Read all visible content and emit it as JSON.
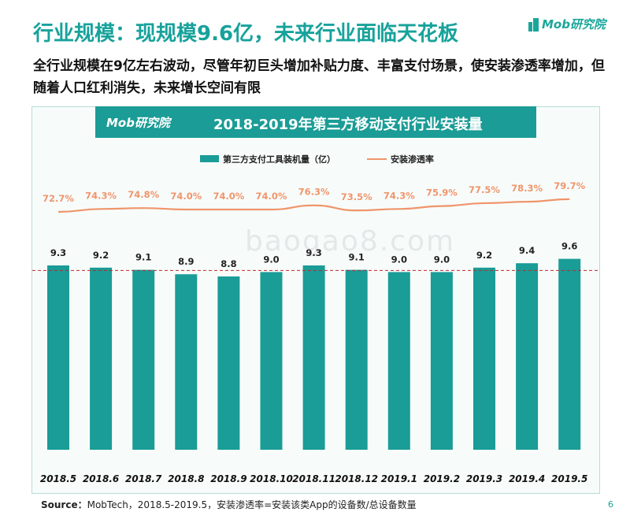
{
  "slide": {
    "title": "行业规模：现规模9.6亿，未来行业面临天花板",
    "subtitle": "全行业规模在9亿左右波动，尽管年初巨头增加补贴力度、丰富支付场景，使安装渗透率增加，但随着人口红利消失，未来增长空间有限",
    "logo_text": "Mob研究院",
    "watermark": "baogao8.com",
    "page_number": "6",
    "footnote_label": "Source：",
    "footnote_text": "MobTech，2018.5-2019.5，安装渗透率=安装该类App的设备数/总设备数量"
  },
  "colors": {
    "accent": "#17a29b",
    "bar": "#1a9c97",
    "line": "#f0956b",
    "refline": "#c0292b"
  },
  "chart_data": {
    "type": "bar",
    "title": "2018-2019年第三方移动支付行业安装量",
    "header_logo": "Mob研究院",
    "categories": [
      "2018.5",
      "2018.6",
      "2018.7",
      "2018.8",
      "2018.9",
      "2018.10",
      "2018.11",
      "2018.12",
      "2019.1",
      "2019.2",
      "2019.3",
      "2019.4",
      "2019.5"
    ],
    "series": [
      {
        "name": "第三方支付工具装机量（亿）",
        "type": "bar",
        "values": [
          9.3,
          9.2,
          9.1,
          8.9,
          8.8,
          9.0,
          9.3,
          9.1,
          9.0,
          9.0,
          9.2,
          9.4,
          9.6
        ],
        "labels": [
          "9.3",
          "9.2",
          "9.1",
          "8.9",
          "8.8",
          "9.0",
          "9.3",
          "9.1",
          "9.0",
          "9.0",
          "9.2",
          "9.4",
          "9.6"
        ]
      },
      {
        "name": "安装渗透率",
        "type": "line",
        "values": [
          72.7,
          74.3,
          74.8,
          74.0,
          74.0,
          74.0,
          76.3,
          73.5,
          74.3,
          75.9,
          77.5,
          78.3,
          79.7
        ],
        "labels": [
          "72.7%",
          "74.3%",
          "74.8%",
          "74.0%",
          "74.0%",
          "74.0%",
          "76.3%",
          "73.5%",
          "74.3%",
          "75.9%",
          "77.5%",
          "78.3%",
          "79.7%"
        ]
      }
    ],
    "reference_line": 9.0,
    "legend_position": "top",
    "grid": false
  }
}
